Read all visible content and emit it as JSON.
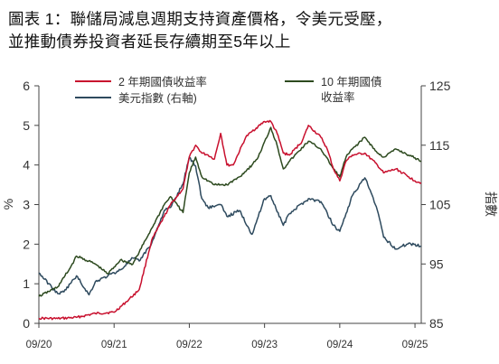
{
  "title": {
    "line1": "圖表 1：聯儲局減息週期支持資產價格，令美元受壓，",
    "line2": "並推動債券投資者延長存續期至5年以上"
  },
  "chart_data": {
    "type": "line",
    "x_tick_labels": [
      "09/20",
      "09/21",
      "09/22",
      "09/23",
      "09/24",
      "09/25"
    ],
    "xlim": [
      "2020-09",
      "2025-10"
    ],
    "y_left": {
      "label": "%",
      "ticks": [
        "0",
        "1",
        "2",
        "3",
        "4",
        "5",
        "6"
      ],
      "range": [
        0,
        6
      ]
    },
    "y_right": {
      "label": "指數",
      "ticks": [
        "85",
        "95",
        "105",
        "115",
        "125"
      ],
      "range": [
        85,
        125
      ]
    },
    "grid": false,
    "legend_position": "top",
    "series": [
      {
        "name": "2 年期國債收益率",
        "axis": "left",
        "color": "#c8102e",
        "x": [
          "2020-09",
          "2020-12",
          "2021-03",
          "2021-06",
          "2021-09",
          "2021-11",
          "2022-01",
          "2022-03",
          "2022-05",
          "2022-06",
          "2022-08",
          "2022-09",
          "2022-10",
          "2022-11",
          "2022-12",
          "2023-01",
          "2023-02",
          "2023-03",
          "2023-04",
          "2023-06",
          "2023-07",
          "2023-09",
          "2023-10",
          "2023-11",
          "2023-12",
          "2024-01",
          "2024-03",
          "2024-04",
          "2024-06",
          "2024-07",
          "2024-08",
          "2024-09",
          "2024-10",
          "2024-11",
          "2025-01",
          "2025-03",
          "2025-04",
          "2025-06",
          "2025-08",
          "2025-09",
          "2025-10"
        ],
        "values": [
          0.13,
          0.12,
          0.15,
          0.25,
          0.28,
          0.55,
          0.85,
          2.1,
          2.7,
          3.0,
          3.4,
          4.2,
          4.5,
          4.3,
          4.25,
          4.15,
          4.8,
          4.0,
          4.0,
          4.7,
          4.85,
          5.1,
          5.1,
          4.8,
          4.3,
          4.25,
          4.6,
          5.0,
          4.7,
          4.4,
          3.9,
          3.6,
          4.1,
          4.25,
          4.3,
          4.0,
          3.8,
          3.9,
          3.7,
          3.6,
          3.55
        ]
      },
      {
        "name": "10 年期國債收益率",
        "axis": "left",
        "color": "#2d4a1f",
        "x": [
          "2020-09",
          "2020-12",
          "2021-02",
          "2021-03",
          "2021-06",
          "2021-08",
          "2021-10",
          "2021-12",
          "2022-01",
          "2022-03",
          "2022-05",
          "2022-06",
          "2022-08",
          "2022-09",
          "2022-10",
          "2022-11",
          "2022-12",
          "2023-01",
          "2023-03",
          "2023-05",
          "2023-07",
          "2023-08",
          "2023-10",
          "2023-11",
          "2023-12",
          "2024-01",
          "2024-04",
          "2024-06",
          "2024-08",
          "2024-09",
          "2024-10",
          "2024-11",
          "2025-01",
          "2025-03",
          "2025-04",
          "2025-06",
          "2025-08",
          "2025-10"
        ],
        "values": [
          0.68,
          0.92,
          1.4,
          1.7,
          1.5,
          1.25,
          1.6,
          1.5,
          1.8,
          2.4,
          3.0,
          3.2,
          2.8,
          3.8,
          4.2,
          3.7,
          3.6,
          3.5,
          3.5,
          3.7,
          4.0,
          4.2,
          4.95,
          4.5,
          3.9,
          4.1,
          4.6,
          4.4,
          3.9,
          3.7,
          4.2,
          4.4,
          4.7,
          4.3,
          4.2,
          4.4,
          4.25,
          4.1
        ]
      },
      {
        "name": "美元指數 (右軸)",
        "axis": "right",
        "color": "#2e4a5e",
        "x": [
          "2020-09",
          "2020-12",
          "2021-01",
          "2021-03",
          "2021-05",
          "2021-06",
          "2021-08",
          "2021-10",
          "2021-12",
          "2022-01",
          "2022-03",
          "2022-05",
          "2022-06",
          "2022-08",
          "2022-09",
          "2022-10",
          "2022-11",
          "2022-12",
          "2023-02",
          "2023-03",
          "2023-05",
          "2023-07",
          "2023-09",
          "2023-10",
          "2023-12",
          "2024-01",
          "2024-04",
          "2024-06",
          "2024-08",
          "2024-09",
          "2024-10",
          "2024-11",
          "2025-01",
          "2025-02",
          "2025-03",
          "2025-04",
          "2025-06",
          "2025-08",
          "2025-10"
        ],
        "values": [
          93.5,
          90.0,
          90.3,
          93.0,
          89.8,
          92.0,
          93.0,
          94.0,
          96.0,
          95.5,
          98.5,
          104.0,
          104.5,
          108.5,
          113.0,
          111.5,
          106.0,
          104.5,
          105.0,
          103.0,
          104.0,
          100.0,
          106.0,
          106.5,
          101.5,
          103.5,
          106.0,
          105.5,
          101.5,
          100.5,
          103.5,
          106.5,
          109.5,
          107.0,
          104.0,
          99.5,
          97.5,
          98.5,
          98.0
        ]
      }
    ]
  }
}
